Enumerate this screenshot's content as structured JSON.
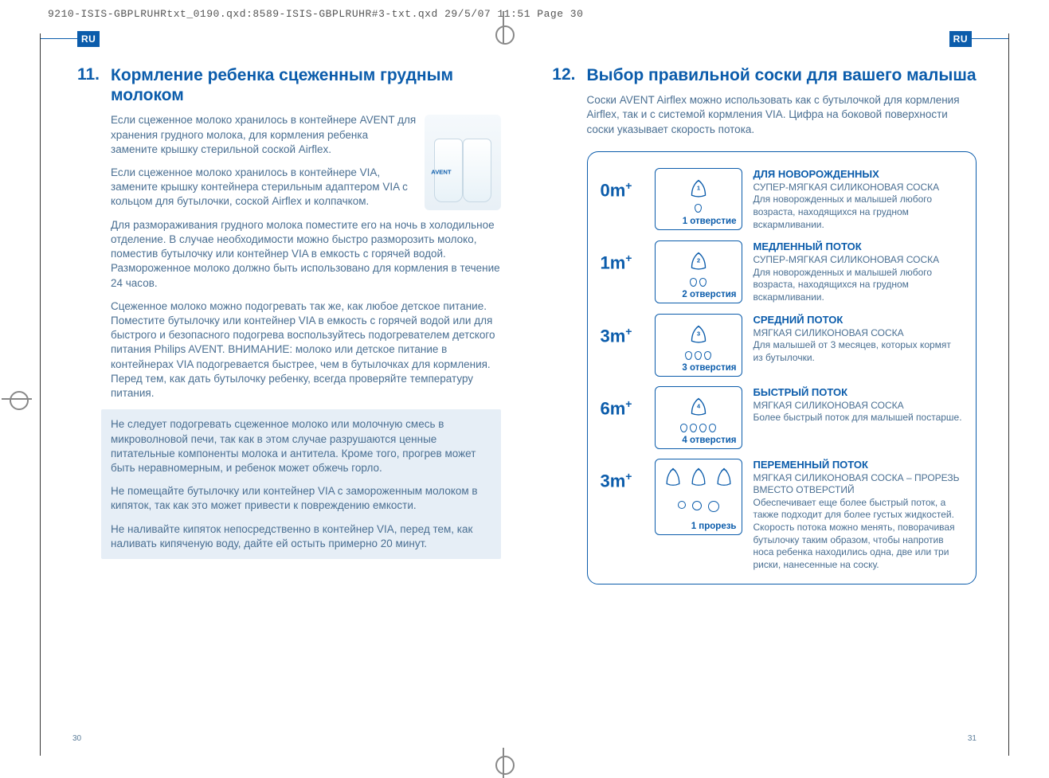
{
  "meta_header": "9210-ISIS-GBPLRUHRtxt_0190.qxd:8589-ISIS-GBPLRUHR#3-txt.qxd  29/5/07  11:51  Page 30",
  "lang_badge": "RU",
  "page_left_num": "30",
  "page_right_num": "31",
  "colors": {
    "brand": "#0b5cab",
    "body_text": "#4a6f92",
    "highlight_bg": "#e6eef6"
  },
  "section11": {
    "num": "11.",
    "title": "Кормление ребенка сцеженным грудным молоком",
    "bottle_label": "AVENT",
    "p1": "Если сцеженное молоко хранилось в контейнере AVENT  для хранения грудного молока, для кормления ребенка замените крышку стерильной соской Airflex.",
    "p2": "Если сцеженное молоко хранилось в контейнере VIA, замените крышку контейнера стерильным адаптером VIA с кольцом для бутылочки, соской Airflex и колпачком.",
    "p3": "Для размораживания грудного молока поместите его на ночь в холодильное отделение. В случае необходимости можно быстро разморозить молоко, поместив бутылочку или контейнер VIA в емкость с горячей водой. Размороженное молоко должно быть использовано для кормления в течение 24 часов.",
    "p4": "Сцеженное молоко можно подогревать так же, как любое детское питание. Поместите бутылочку или контейнер VIA в емкость с горячей водой или для быстрого и безопасного подогрева воспользуйтесь подогревателем детского питания Philips AVENT. ВНИМАНИЕ: молоко или детское питание в контейнерах VIA подогревается быстрее, чем в бутылочках для кормления. Перед тем, как дать бутылочку ребенку, всегда проверяйте температуру питания.",
    "warn1": "Не следует подогревать сцеженное молоко или молочную смесь в микроволновой печи, так как в этом случае разрушаются ценные питательные компоненты молока и антитела. Кроме того, прогрев может быть неравномерным, и ребенок может обжечь горло.",
    "warn2": "Не помещайте бутылочку или контейнер VIA с замороженным молоком в кипяток, так как это может привести к повреждению емкости.",
    "warn3": "Не наливайте кипяток непосредственно в контейнер VIA, перед тем, как наливать кипяченую воду, дайте ей остыть примерно 20 минут."
  },
  "section12": {
    "num": "12.",
    "title": "Выбор правильной соски для вашего малыша",
    "intro": "Соски AVENT Airflex можно использовать как с бутылочкой для кормления Airflex, так и с системой кормления VIA. Цифра на боковой поверхности соски указывает скорость потока.",
    "rows": [
      {
        "age": "0m",
        "plus": "+",
        "holes": 1,
        "caption": "1 отверстие",
        "title": "ДЛЯ НОВОРОЖДЕННЫХ",
        "desc": "СУПЕР-МЯГКАЯ СИЛИКОНОВАЯ СОСКА\nДля новорожденных и малышей любого возраста, находящихся на грудном вскармливании."
      },
      {
        "age": "1m",
        "plus": "+",
        "holes": 2,
        "caption": "2 отверстия",
        "title": "МЕДЛЕННЫЙ ПОТОК",
        "desc": "СУПЕР-МЯГКАЯ СИЛИКОНОВАЯ СОСКА\nДля новорожденных и малышей любого возраста, находящихся на грудном вскармливании."
      },
      {
        "age": "3m",
        "plus": "+",
        "holes": 3,
        "caption": "3 отверстия",
        "title": "СРЕДНИЙ ПОТОК",
        "desc": "МЯГКАЯ СИЛИКОНОВАЯ СОСКА\nДля малышей от 3 месяцев, которых кормят из бутылочки."
      },
      {
        "age": "6m",
        "plus": "+",
        "holes": 4,
        "caption": "4 отверстия",
        "title": "БЫСТРЫЙ ПОТОК",
        "desc": "МЯГКАЯ СИЛИКОНОВАЯ СОСКА\nБолее быстрый поток для малышей постарше."
      },
      {
        "age": "3m",
        "plus": "+",
        "holes": 0,
        "variable": true,
        "caption": "1 прорезь",
        "title": "ПЕРЕМЕННЫЙ ПОТОК",
        "desc": "МЯГКАЯ СИЛИКОНОВАЯ СОСКА – ПРОРЕЗЬ ВМЕСТО ОТВЕРСТИЙ\nОбеспечивает еще более быстрый поток, а также подходит для более густых жидкостей. Скорость потока можно менять, поворачивая бутылочку таким образом, чтобы напротив носа ребенка находились одна, две или три риски, нанесенные на соску."
      }
    ]
  }
}
